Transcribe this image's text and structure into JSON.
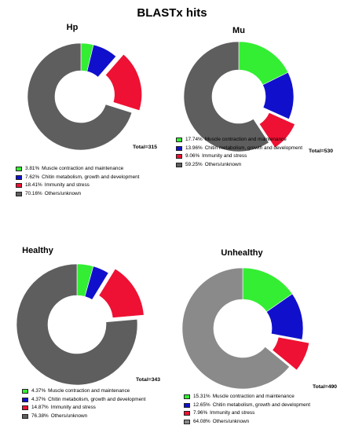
{
  "title": "BLASTx hits",
  "category_colors": [
    "#33ee33",
    "#1010cc",
    "#ee1133",
    "#5e5e5e"
  ],
  "chart_data": [
    {
      "type": "pie",
      "title": "Hp",
      "total_label": "Total=315",
      "categories": [
        "Muscle contraction and maintenance",
        "Chitin metabolism, growth and development",
        "Immunity and stress",
        "Others/unknown"
      ],
      "percent_labels": [
        "3.81%",
        "7.62%",
        "18.41%",
        "70.16%"
      ],
      "values": [
        3.81,
        7.62,
        18.41,
        70.16
      ],
      "colors": [
        "#33ee33",
        "#1010cc",
        "#ee1133",
        "#5e5e5e"
      ],
      "exploded_slice": 2,
      "legend": "bottom"
    },
    {
      "type": "pie",
      "title": "Mu",
      "total_label": "Total=530",
      "categories": [
        "Muscle contraction and maintenance",
        "Chitin metabolism, growth and development",
        "Immunity and stress",
        "Others/unknown"
      ],
      "percent_labels": [
        "17.74%",
        "13.96%",
        "9.06%",
        "59.25%"
      ],
      "values": [
        17.74,
        13.96,
        9.06,
        59.25
      ],
      "colors": [
        "#33ee33",
        "#1010cc",
        "#ee1133",
        "#5e5e5e"
      ],
      "exploded_slice": 2,
      "legend": "bottom"
    },
    {
      "type": "pie",
      "title": "Healthy",
      "total_label": "Total=343",
      "categories": [
        "Muscle contraction and maintenance",
        "Chitin metabolism, growth and development",
        "Immunity and stress",
        "Others/unknown"
      ],
      "percent_labels": [
        "4.37%",
        "4.37%",
        "14.87%",
        "76.38%"
      ],
      "values": [
        4.37,
        4.37,
        14.87,
        76.38
      ],
      "colors": [
        "#33ee33",
        "#1010cc",
        "#ee1133",
        "#5e5e5e"
      ],
      "exploded_slice": 2,
      "legend": "bottom"
    },
    {
      "type": "pie",
      "title": "Unhealthy",
      "total_label": "Total=490",
      "categories": [
        "Muscle contraction and maintenance",
        "Chitin metabolism, growth and development",
        "Immunity and stress",
        "Others/unknown"
      ],
      "percent_labels": [
        "15.31%",
        "12.65%",
        "7.96%",
        "64.08%"
      ],
      "values": [
        15.31,
        12.65,
        7.96,
        64.08
      ],
      "colors": [
        "#33ee33",
        "#1010cc",
        "#ee1133",
        "#8a8a8a"
      ],
      "exploded_slice": 2,
      "legend": "bottom"
    }
  ]
}
